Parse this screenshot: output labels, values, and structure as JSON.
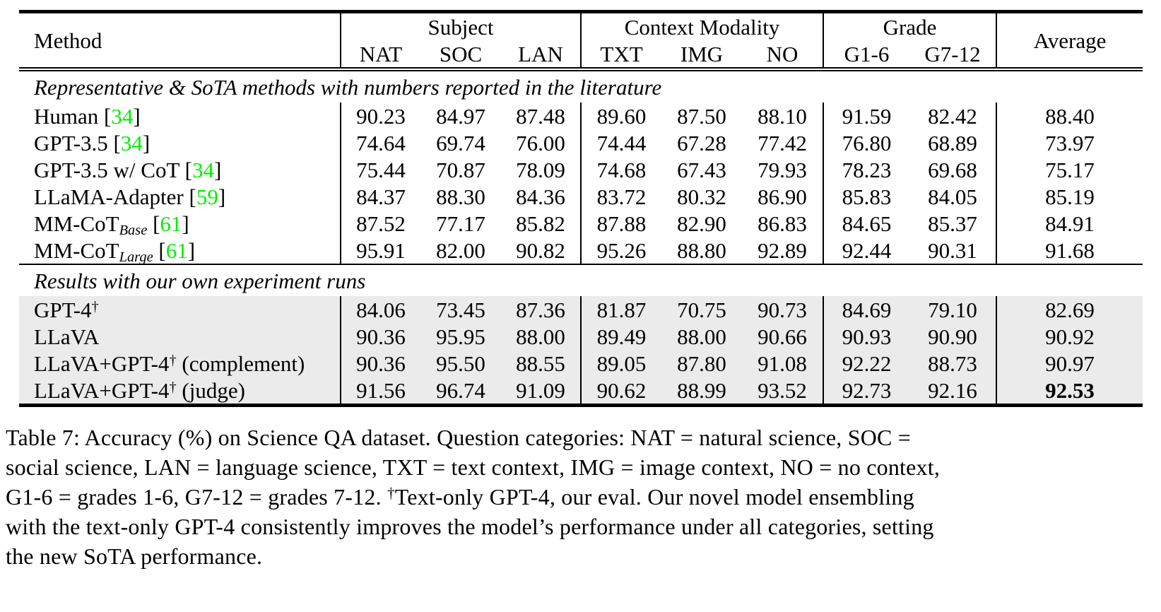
{
  "colors": {
    "citation_green": "#00ee00",
    "row_shade": "#ebebeb",
    "rule_black": "#000000"
  },
  "table": {
    "header": {
      "method": "Method",
      "groups": [
        {
          "label": "Subject",
          "cols": [
            "NAT",
            "SOC",
            "LAN"
          ]
        },
        {
          "label": "Context Modality",
          "cols": [
            "TXT",
            "IMG",
            "NO"
          ]
        },
        {
          "label": "Grade",
          "cols": [
            "G1-6",
            "G7-12"
          ]
        }
      ],
      "average": "Average"
    },
    "sections": [
      {
        "title": "Representative & SoTA methods with numbers reported in the literature",
        "shaded": false,
        "rows": [
          {
            "method": {
              "name": "Human",
              "cite": "34"
            },
            "values": [
              "90.23",
              "84.97",
              "87.48",
              "89.60",
              "87.50",
              "88.10",
              "91.59",
              "82.42",
              "88.40"
            ]
          },
          {
            "method": {
              "name": "GPT-3.5",
              "cite": "34"
            },
            "values": [
              "74.64",
              "69.74",
              "76.00",
              "74.44",
              "67.28",
              "77.42",
              "76.80",
              "68.89",
              "73.97"
            ]
          },
          {
            "method": {
              "name": "GPT-3.5 w/ CoT",
              "cite": "34"
            },
            "values": [
              "75.44",
              "70.87",
              "78.09",
              "74.68",
              "67.43",
              "79.93",
              "78.23",
              "69.68",
              "75.17"
            ]
          },
          {
            "method": {
              "name": "LLaMA-Adapter",
              "cite": "59"
            },
            "values": [
              "84.37",
              "88.30",
              "84.36",
              "83.72",
              "80.32",
              "86.90",
              "85.83",
              "84.05",
              "85.19"
            ]
          },
          {
            "method": {
              "name": "MM-CoT",
              "sub": "Base",
              "cite": "61"
            },
            "values": [
              "87.52",
              "77.17",
              "85.82",
              "87.88",
              "82.90",
              "86.83",
              "84.65",
              "85.37",
              "84.91"
            ]
          },
          {
            "method": {
              "name": "MM-CoT",
              "sub": "Large",
              "cite": "61"
            },
            "values": [
              "95.91",
              "82.00",
              "90.82",
              "95.26",
              "88.80",
              "92.89",
              "92.44",
              "90.31",
              "91.68"
            ]
          }
        ]
      },
      {
        "title": "Results with our own experiment runs",
        "shaded": true,
        "rows": [
          {
            "method": {
              "name": "GPT-4",
              "sup": "†"
            },
            "values": [
              "84.06",
              "73.45",
              "87.36",
              "81.87",
              "70.75",
              "90.73",
              "84.69",
              "79.10",
              "82.69"
            ]
          },
          {
            "method": {
              "name": "LLaVA"
            },
            "values": [
              "90.36",
              "95.95",
              "88.00",
              "89.49",
              "88.00",
              "90.66",
              "90.93",
              "90.90",
              "90.92"
            ]
          },
          {
            "method": {
              "name": "LLaVA+GPT-4",
              "sup": "†",
              "suffix": " (complement)"
            },
            "values": [
              "90.36",
              "95.50",
              "88.55",
              "89.05",
              "87.80",
              "91.08",
              "92.22",
              "88.73",
              "90.97"
            ]
          },
          {
            "method": {
              "name": "LLaVA+GPT-4",
              "sup": "†",
              "suffix": " (judge)"
            },
            "values": [
              "91.56",
              "96.74",
              "91.09",
              "90.62",
              "88.99",
              "93.52",
              "92.73",
              "92.16",
              "92.53"
            ],
            "bold_average": true
          }
        ]
      }
    ]
  },
  "caption": {
    "lines": [
      "Table 7: Accuracy (%) on Science QA dataset. Question categories: NAT = natural science, SOC =",
      "social science, LAN = language science, TXT = text context, IMG = image context, NO = no context,",
      "G1-6 = grades 1-6, G7-12 = grades 7-12. †Text-only GPT-4, our eval. Our novel model ensembling",
      "with the text-only GPT-4 consistently improves the model’s performance under all categories, setting",
      "the new SoTA performance."
    ]
  }
}
